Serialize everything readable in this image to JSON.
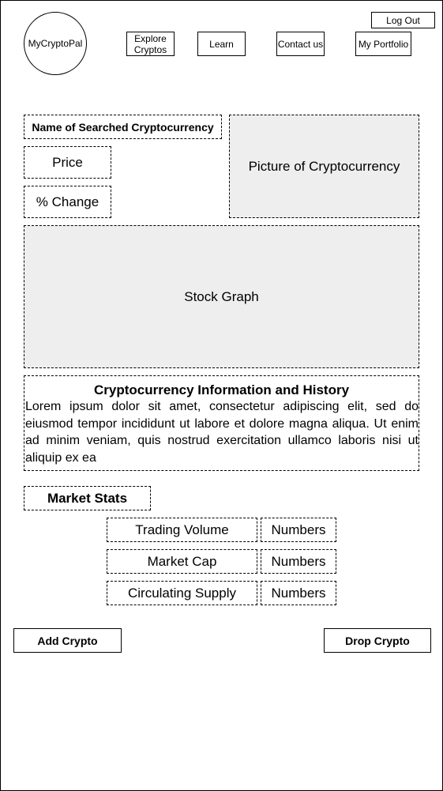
{
  "header": {
    "logo_text": "MyCryptoPal",
    "logout_label": "Log Out",
    "nav": {
      "explore_line1": "Explore",
      "explore_line2": "Cryptos",
      "learn": "Learn",
      "contact": "Contact us",
      "portfolio": "My Portfolio"
    }
  },
  "crypto": {
    "name_label": "Name of Searched Cryptocurrency",
    "price_label": "Price",
    "change_label": "% Change",
    "picture_label": "Picture of Cryptocurrency",
    "graph_label": "Stock Graph"
  },
  "info": {
    "title": "Cryptocurrency Information and History",
    "body": "Lorem ipsum dolor sit amet, consectetur adipiscing elit, sed do eiusmod tempor incididunt ut labore et dolore magna aliqua. Ut enim ad minim veniam, quis nostrud exercitation ullamco laboris nisi ut aliquip ex ea"
  },
  "market": {
    "title": "Market Stats",
    "rows": [
      {
        "label": "Trading Volume",
        "value": "Numbers"
      },
      {
        "label": "Market Cap",
        "value": "Numbers"
      },
      {
        "label": "Circulating Supply",
        "value": "Numbers"
      }
    ]
  },
  "actions": {
    "add_label": "Add Crypto",
    "drop_label": "Drop Crypto"
  }
}
